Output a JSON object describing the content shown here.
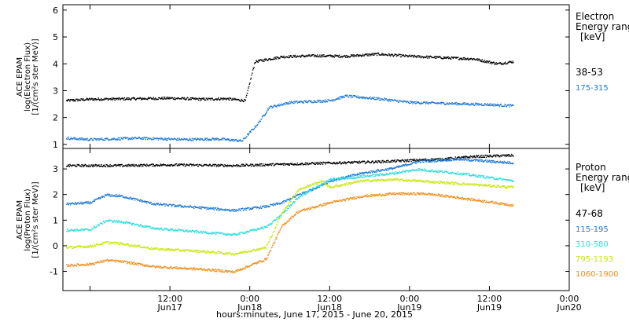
{
  "figure": {
    "xaxis_title": "hours:minutes, June 17, 2015 - June 20, 2015",
    "time_ticks": [
      {
        "day": 0.0,
        "label": "",
        "sub": ""
      },
      {
        "day": 0.5,
        "label": "12:00",
        "sub": "Jun17"
      },
      {
        "day": 1.0,
        "label": "0:00",
        "sub": "Jun18"
      },
      {
        "day": 1.5,
        "label": "12:00",
        "sub": "Jun18"
      },
      {
        "day": 2.0,
        "label": "0:00",
        "sub": "Jun19"
      },
      {
        "day": 2.5,
        "label": "12:00",
        "sub": "Jun19"
      },
      {
        "day": 3.0,
        "label": "0:00",
        "sub": "Jun20"
      }
    ]
  },
  "chart_data": [
    {
      "type": "scatter",
      "instrument_label": "ACE EPAM",
      "ylabel_line1": "log(Electron Flux)",
      "ylabel_line2": "[1/(cm²s ster MeV)]",
      "legend_title_line1": "Electron",
      "legend_title_line2": "Energy range",
      "legend_units": "[keV]",
      "xlim": [
        -0.17,
        3.0
      ],
      "ylim": [
        0.85,
        6.2
      ],
      "yticks": [
        1,
        2,
        3,
        4,
        5,
        6
      ],
      "series": [
        {
          "name": "38-53",
          "color": "#000000",
          "points": [
            [
              -0.15,
              2.65
            ],
            [
              0.0,
              2.7
            ],
            [
              0.3,
              2.72
            ],
            [
              0.5,
              2.74
            ],
            [
              0.7,
              2.7
            ],
            [
              0.85,
              2.72
            ],
            [
              0.97,
              2.65
            ],
            [
              1.03,
              4.1
            ],
            [
              1.2,
              4.28
            ],
            [
              1.4,
              4.32
            ],
            [
              1.6,
              4.3
            ],
            [
              1.8,
              4.38
            ],
            [
              2.0,
              4.3
            ],
            [
              2.2,
              4.25
            ],
            [
              2.4,
              4.2
            ],
            [
              2.55,
              4.02
            ],
            [
              2.65,
              4.1
            ]
          ]
        },
        {
          "name": "175-315",
          "color": "#1a78d6",
          "points": [
            [
              -0.15,
              1.25
            ],
            [
              0.0,
              1.2
            ],
            [
              0.3,
              1.25
            ],
            [
              0.6,
              1.2
            ],
            [
              0.8,
              1.22
            ],
            [
              0.95,
              1.15
            ],
            [
              1.05,
              1.8
            ],
            [
              1.12,
              2.4
            ],
            [
              1.25,
              2.58
            ],
            [
              1.5,
              2.65
            ],
            [
              1.6,
              2.82
            ],
            [
              1.8,
              2.72
            ],
            [
              2.0,
              2.58
            ],
            [
              2.2,
              2.55
            ],
            [
              2.5,
              2.5
            ],
            [
              2.65,
              2.45
            ]
          ]
        }
      ]
    },
    {
      "type": "scatter",
      "instrument_label": "ACE EPAM",
      "ylabel_line1": "log(Proton Flux)",
      "ylabel_line2": "[1/(cm²s ster MeV)]",
      "legend_title_line1": "Proton",
      "legend_title_line2": "Energy range",
      "legend_units": "[keV]",
      "xlim": [
        -0.17,
        3.0
      ],
      "ylim": [
        -1.75,
        3.8
      ],
      "yticks": [
        -1,
        0,
        1,
        2,
        3
      ],
      "series": [
        {
          "name": "47-68",
          "color": "#000000",
          "points": [
            [
              -0.15,
              3.15
            ],
            [
              0.2,
              3.15
            ],
            [
              0.5,
              3.18
            ],
            [
              0.9,
              3.15
            ],
            [
              1.2,
              3.2
            ],
            [
              1.5,
              3.25
            ],
            [
              1.8,
              3.3
            ],
            [
              2.0,
              3.35
            ],
            [
              2.2,
              3.4
            ],
            [
              2.4,
              3.5
            ],
            [
              2.65,
              3.55
            ]
          ]
        },
        {
          "name": "115-195",
          "color": "#1a78d6",
          "points": [
            [
              -0.15,
              1.65
            ],
            [
              0.0,
              1.7
            ],
            [
              0.1,
              2.0
            ],
            [
              0.2,
              1.95
            ],
            [
              0.4,
              1.65
            ],
            [
              0.7,
              1.5
            ],
            [
              0.9,
              1.4
            ],
            [
              1.1,
              1.55
            ],
            [
              1.2,
              1.7
            ],
            [
              1.3,
              2.0
            ],
            [
              1.4,
              2.25
            ],
            [
              1.5,
              2.55
            ],
            [
              1.7,
              2.85
            ],
            [
              1.9,
              3.05
            ],
            [
              2.05,
              3.3
            ],
            [
              2.3,
              3.4
            ],
            [
              2.65,
              3.25
            ]
          ]
        },
        {
          "name": "310-580",
          "color": "#2cdcdc",
          "points": [
            [
              -0.15,
              0.62
            ],
            [
              0.0,
              0.65
            ],
            [
              0.1,
              1.0
            ],
            [
              0.2,
              0.95
            ],
            [
              0.4,
              0.7
            ],
            [
              0.7,
              0.55
            ],
            [
              0.9,
              0.45
            ],
            [
              1.1,
              0.75
            ],
            [
              1.2,
              1.25
            ],
            [
              1.3,
              1.9
            ],
            [
              1.4,
              2.25
            ],
            [
              1.5,
              2.6
            ],
            [
              1.7,
              2.72
            ],
            [
              1.9,
              2.85
            ],
            [
              2.05,
              3.0
            ],
            [
              2.3,
              2.85
            ],
            [
              2.65,
              2.55
            ]
          ]
        },
        {
          "name": "795-1193",
          "color": "#c8e60a",
          "points": [
            [
              -0.15,
              -0.05
            ],
            [
              0.0,
              0.0
            ],
            [
              0.1,
              0.15
            ],
            [
              0.2,
              0.1
            ],
            [
              0.4,
              -0.1
            ],
            [
              0.7,
              -0.2
            ],
            [
              0.9,
              -0.3
            ],
            [
              1.1,
              -0.05
            ],
            [
              1.2,
              1.3
            ],
            [
              1.3,
              2.2
            ],
            [
              1.45,
              2.55
            ],
            [
              1.5,
              2.3
            ],
            [
              1.7,
              2.55
            ],
            [
              1.9,
              2.6
            ],
            [
              2.05,
              2.55
            ],
            [
              2.3,
              2.45
            ],
            [
              2.65,
              2.3
            ]
          ]
        },
        {
          "name": "1060-1900",
          "color": "#f08c14",
          "points": [
            [
              -0.15,
              -0.75
            ],
            [
              0.0,
              -0.7
            ],
            [
              0.1,
              -0.55
            ],
            [
              0.2,
              -0.6
            ],
            [
              0.4,
              -0.8
            ],
            [
              0.7,
              -0.9
            ],
            [
              0.9,
              -1.0
            ],
            [
              1.1,
              -0.5
            ],
            [
              1.2,
              0.8
            ],
            [
              1.3,
              1.35
            ],
            [
              1.5,
              1.7
            ],
            [
              1.7,
              1.95
            ],
            [
              1.9,
              2.05
            ],
            [
              2.1,
              2.05
            ],
            [
              2.3,
              1.9
            ],
            [
              2.65,
              1.6
            ]
          ]
        }
      ]
    }
  ]
}
